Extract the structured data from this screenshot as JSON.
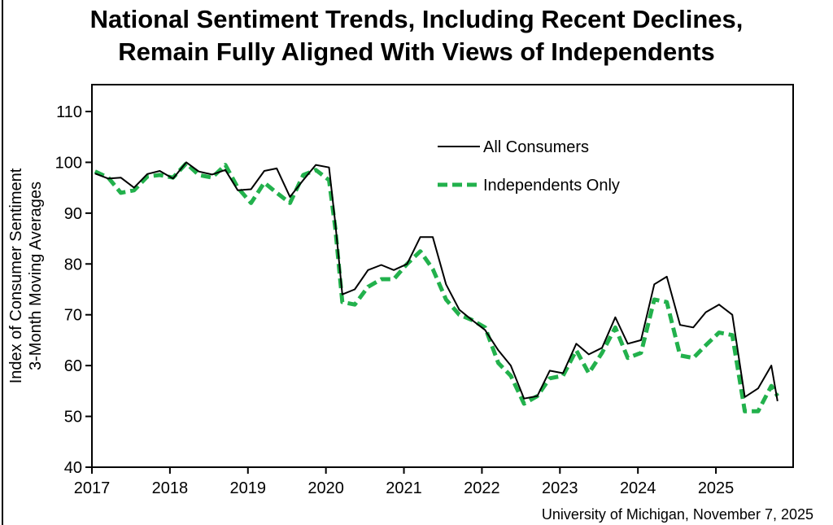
{
  "title_line1": "National Sentiment Trends, Including Recent Declines,",
  "title_line2": "Remain Fully Aligned With Views of Independents",
  "source": "University of Michigan, November 7, 2025",
  "colors": {
    "all": "#000000",
    "independents": "#22b14c"
  },
  "chart_data": {
    "type": "line",
    "title": "National Sentiment Trends, Including Recent Declines, Remain Fully Aligned With Views of Independents",
    "ylabel_line1": "Index of Consumer Sentiment",
    "ylabel_line2": "3-Month Moving Averages",
    "xlabel": "",
    "ylim": [
      40,
      110
    ],
    "xlim": [
      2017.0,
      2025.99
    ],
    "yticks": [
      40,
      50,
      60,
      70,
      80,
      90,
      100,
      110
    ],
    "xticks": [
      2017,
      2018,
      2019,
      2020,
      2021,
      2022,
      2023,
      2024,
      2025
    ],
    "grid": false,
    "legend_position": "top-right",
    "series": [
      {
        "name": "All Consumers",
        "style": "solid",
        "x": [
          2017.04,
          2017.21,
          2017.37,
          2017.54,
          2017.71,
          2017.87,
          2018.04,
          2018.21,
          2018.37,
          2018.54,
          2018.71,
          2018.87,
          2019.04,
          2019.21,
          2019.37,
          2019.54,
          2019.71,
          2019.87,
          2020.04,
          2020.12,
          2020.21,
          2020.37,
          2020.54,
          2020.71,
          2020.87,
          2021.04,
          2021.21,
          2021.37,
          2021.54,
          2021.71,
          2021.87,
          2022.04,
          2022.21,
          2022.37,
          2022.54,
          2022.71,
          2022.87,
          2023.04,
          2023.21,
          2023.37,
          2023.54,
          2023.71,
          2023.87,
          2024.04,
          2024.21,
          2024.37,
          2024.54,
          2024.71,
          2024.87,
          2025.04,
          2025.21,
          2025.37,
          2025.54,
          2025.71,
          2025.79
        ],
        "y": [
          97.8,
          96.8,
          97.0,
          95.0,
          97.7,
          98.3,
          96.8,
          100.0,
          98.2,
          97.6,
          98.5,
          94.5,
          94.7,
          98.3,
          98.8,
          93.2,
          96.5,
          99.5,
          99.0,
          88.0,
          74.0,
          75.0,
          78.8,
          79.8,
          78.8,
          80.0,
          85.3,
          85.3,
          76.0,
          71.0,
          69.0,
          67.0,
          63.0,
          60.0,
          53.5,
          54.0,
          59.0,
          58.5,
          64.3,
          62.2,
          63.5,
          69.5,
          64.3,
          65.0,
          76.0,
          77.5,
          68.0,
          67.5,
          70.5,
          72.0,
          70.0,
          53.8,
          55.5,
          60.0,
          53.0
        ]
      },
      {
        "name": "Independents Only",
        "style": "dashed",
        "x": [
          2017.04,
          2017.21,
          2017.37,
          2017.54,
          2017.71,
          2017.87,
          2018.04,
          2018.21,
          2018.37,
          2018.54,
          2018.71,
          2018.87,
          2019.04,
          2019.21,
          2019.37,
          2019.54,
          2019.71,
          2019.87,
          2020.04,
          2020.12,
          2020.21,
          2020.37,
          2020.54,
          2020.71,
          2020.87,
          2021.04,
          2021.21,
          2021.37,
          2021.54,
          2021.71,
          2021.87,
          2022.04,
          2022.21,
          2022.37,
          2022.54,
          2022.71,
          2022.87,
          2023.04,
          2023.21,
          2023.37,
          2023.54,
          2023.71,
          2023.87,
          2024.04,
          2024.21,
          2024.37,
          2024.54,
          2024.71,
          2024.87,
          2025.04,
          2025.21,
          2025.37,
          2025.54,
          2025.71,
          2025.79
        ],
        "y": [
          98.2,
          97.0,
          94.0,
          94.5,
          97.2,
          97.5,
          97.0,
          99.8,
          97.5,
          97.0,
          99.5,
          95.0,
          92.0,
          96.0,
          94.0,
          92.0,
          97.5,
          98.5,
          96.5,
          87.0,
          72.5,
          72.0,
          75.5,
          77.0,
          77.0,
          80.0,
          82.5,
          79.0,
          73.0,
          70.0,
          69.0,
          67.5,
          60.5,
          58.0,
          52.5,
          54.0,
          57.5,
          58.0,
          63.0,
          58.5,
          62.5,
          67.5,
          61.5,
          62.5,
          73.0,
          72.5,
          62.0,
          61.5,
          64.0,
          66.5,
          66.0,
          51.0,
          51.0,
          56.0,
          54.0
        ]
      }
    ]
  }
}
